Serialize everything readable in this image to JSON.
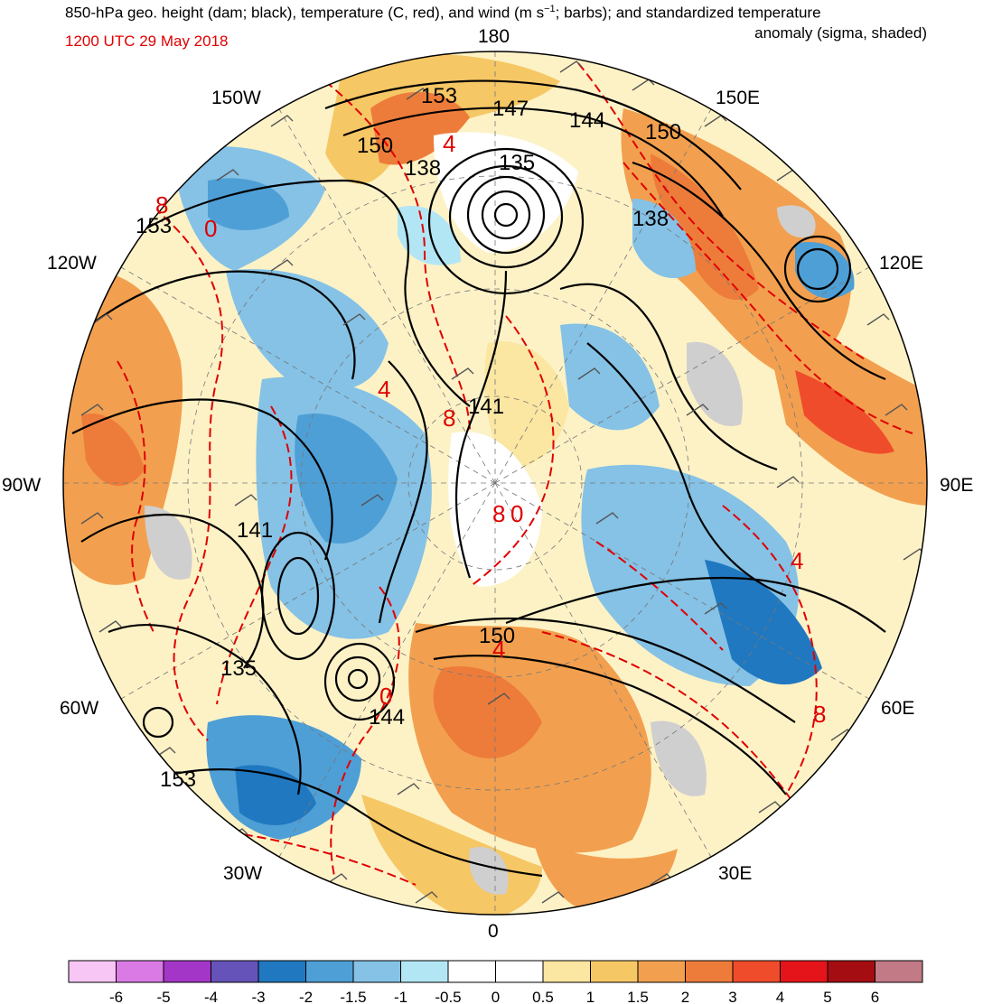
{
  "title": {
    "line1": "850-hPa geo. height (dam; black), temperature (C, red), and wind (m s",
    "superscript": "−1",
    "line1_end": "; barbs); and standardized temperature",
    "line2": "anomaly (sigma, shaded)",
    "datetime": "1200 UTC 29 May 2018"
  },
  "longitude_labels": {
    "top": "180",
    "bottom": "0",
    "left": "90W",
    "right": "90E",
    "upper_left_1": "150W",
    "upper_left_2": "120W",
    "upper_right_1": "150E",
    "upper_right_2": "120E",
    "lower_left_1": "60W",
    "lower_left_2": "30W",
    "lower_right_1": "60E",
    "lower_right_2": "30E"
  },
  "height_labels": [
    "153",
    "147",
    "144",
    "150",
    "135",
    "138",
    "150",
    "153",
    "138",
    "141",
    "141",
    "135",
    "144",
    "150",
    "153"
  ],
  "temp_labels": [
    "0",
    "4",
    "8",
    "8",
    "0",
    "4",
    "4",
    "8",
    "4",
    "0",
    "8"
  ],
  "colorbar": {
    "ticks": [
      "-6",
      "-5",
      "-4",
      "-3",
      "-2",
      "-1.5",
      "-1",
      "-0.5",
      "0",
      "0.5",
      "1",
      "1.5",
      "2",
      "3",
      "4",
      "5",
      "6"
    ],
    "colors": [
      "#f7c6f5",
      "#d97ae5",
      "#a436c7",
      "#6653b9",
      "#2078c0",
      "#4e9fd6",
      "#85c2e6",
      "#b3e6f5",
      "#ffffff",
      "#ffffff",
      "#fbe6a2",
      "#f6c765",
      "#f2a04f",
      "#ed7c3b",
      "#ef4c2c",
      "#e4141a",
      "#a40e13",
      "#c27a86"
    ]
  }
}
